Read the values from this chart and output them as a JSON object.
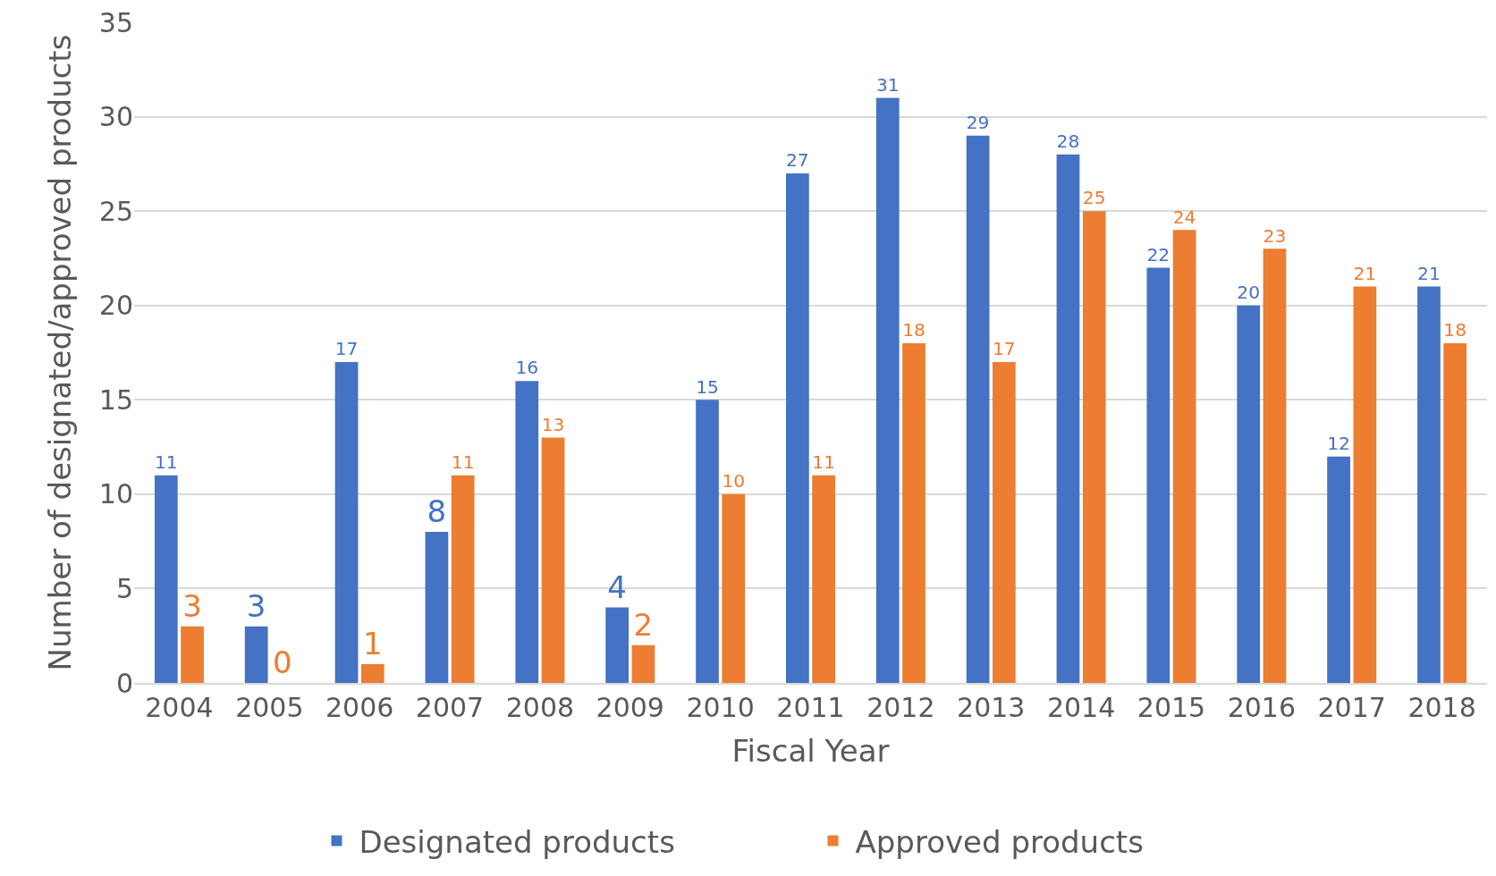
{
  "chart_data": {
    "type": "bar",
    "xlabel": "Fiscal Year",
    "ylabel": "Number of designated/approved products",
    "categories": [
      "2004",
      "2005",
      "2006",
      "2007",
      "2008",
      "2009",
      "2010",
      "2011",
      "2012",
      "2013",
      "2014",
      "2015",
      "2016",
      "2017",
      "2018"
    ],
    "series": [
      {
        "name": "Designated products",
        "color": "#4472c4",
        "values": [
          11,
          3,
          17,
          8,
          16,
          4,
          15,
          27,
          31,
          29,
          28,
          22,
          20,
          12,
          21
        ]
      },
      {
        "name": "Approved products",
        "color": "#ed7d31",
        "values": [
          3,
          0,
          1,
          11,
          13,
          2,
          10,
          11,
          18,
          17,
          25,
          24,
          23,
          21,
          18
        ]
      }
    ],
    "ylim": [
      0,
      35
    ],
    "yticks": [
      0,
      5,
      10,
      15,
      20,
      25,
      30,
      35
    ],
    "grid": "y",
    "legend": "bottom",
    "data_labels": true
  }
}
